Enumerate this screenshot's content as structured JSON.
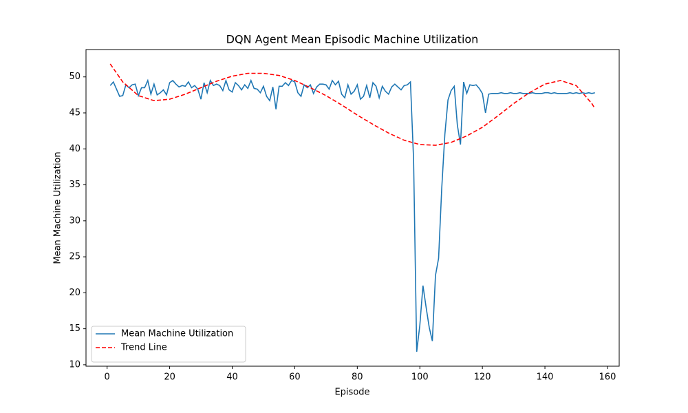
{
  "chart_data": {
    "type": "line",
    "title": "DQN Agent Mean Episodic Machine Utilization",
    "x_label": "Episode",
    "y_label": "Mean Machine Utilization",
    "xlim": [
      -6.75,
      163.75
    ],
    "ylim": [
      9.8,
      53.8
    ],
    "xticks": [
      0,
      20,
      40,
      60,
      80,
      100,
      120,
      140,
      160
    ],
    "yticks": [
      10,
      15,
      20,
      25,
      30,
      35,
      40,
      45,
      50
    ],
    "grid": false,
    "legend": "lower left",
    "series": [
      {
        "name": "Mean Machine Utilization",
        "color": "#1f77b4",
        "style": "solid",
        "x": [
          1,
          2,
          3,
          4,
          5,
          6,
          7,
          8,
          9,
          10,
          11,
          12,
          13,
          14,
          15,
          16,
          17,
          18,
          19,
          20,
          21,
          22,
          23,
          24,
          25,
          26,
          27,
          28,
          29,
          30,
          31,
          32,
          33,
          34,
          35,
          36,
          37,
          38,
          39,
          40,
          41,
          42,
          43,
          44,
          45,
          46,
          47,
          48,
          49,
          50,
          51,
          52,
          53,
          54,
          55,
          56,
          57,
          58,
          59,
          60,
          61,
          62,
          63,
          64,
          65,
          66,
          67,
          68,
          69,
          70,
          71,
          72,
          73,
          74,
          75,
          76,
          77,
          78,
          79,
          80,
          81,
          82,
          83,
          84,
          85,
          86,
          87,
          88,
          89,
          90,
          91,
          92,
          93,
          94,
          95,
          96,
          97,
          98,
          99,
          100,
          101,
          102,
          103,
          104,
          105,
          106,
          107,
          108,
          109,
          110,
          111,
          112,
          113,
          114,
          115,
          116,
          117,
          118,
          119,
          120,
          121,
          122,
          123,
          124,
          125,
          126,
          127,
          128,
          129,
          130,
          131,
          132,
          133,
          134,
          135,
          136,
          137,
          138,
          139,
          140,
          141,
          142,
          143,
          144,
          145,
          146,
          147,
          148,
          149,
          150,
          151,
          152,
          153,
          154,
          155,
          156
        ],
        "values": [
          48.8,
          49.3,
          48.3,
          47.3,
          47.4,
          48.9,
          48.5,
          48.9,
          49.0,
          47.4,
          48.5,
          48.5,
          49.5,
          47.6,
          49.0,
          47.5,
          47.8,
          48.2,
          47.5,
          49.2,
          49.5,
          49.0,
          48.6,
          48.8,
          48.7,
          49.3,
          48.5,
          48.8,
          48.3,
          46.9,
          49.2,
          47.8,
          49.5,
          48.8,
          49.0,
          48.8,
          48.1,
          49.5,
          48.2,
          47.9,
          49.2,
          48.8,
          48.2,
          48.9,
          48.4,
          49.5,
          48.4,
          48.3,
          47.8,
          48.7,
          47.3,
          46.7,
          48.6,
          45.5,
          48.7,
          48.7,
          49.2,
          48.8,
          49.5,
          49.3,
          47.8,
          47.3,
          48.9,
          48.5,
          48.9,
          47.7,
          48.6,
          49.0,
          49.0,
          48.9,
          48.3,
          49.5,
          48.9,
          49.4,
          47.6,
          47.1,
          48.9,
          47.6,
          48.0,
          48.9,
          46.9,
          47.3,
          48.8,
          47.1,
          49.2,
          48.7,
          47.1,
          48.7,
          48.0,
          47.6,
          48.6,
          49.0,
          48.6,
          48.2,
          48.8,
          48.9,
          49.3,
          38.5,
          11.8,
          15.5,
          21.0,
          18.0,
          15.2,
          13.3,
          22.4,
          24.8,
          34.5,
          42.0,
          46.8,
          48.1,
          48.7,
          43.3,
          40.6,
          49.3,
          47.7,
          48.9,
          48.8,
          48.9,
          48.4,
          47.7,
          45.0,
          47.6,
          47.7,
          47.7,
          47.7,
          47.8,
          47.7,
          47.7,
          47.8,
          47.7,
          47.7,
          47.8,
          47.7,
          47.7,
          47.7,
          47.8,
          47.7,
          47.7,
          47.7,
          47.8,
          47.8,
          47.7,
          47.8,
          47.7,
          47.7,
          47.7,
          47.7,
          47.8,
          47.7,
          47.8,
          47.7,
          47.8,
          47.7,
          47.8,
          47.7,
          47.8
        ]
      },
      {
        "name": "Trend Line",
        "color": "#ff0000",
        "style": "dashed",
        "x": [
          1,
          5,
          10,
          15,
          20,
          25,
          30,
          35,
          40,
          45,
          50,
          55,
          60,
          65,
          70,
          75,
          80,
          85,
          90,
          95,
          100,
          105,
          110,
          115,
          120,
          125,
          130,
          135,
          140,
          145,
          150,
          155,
          156
        ],
        "values": [
          51.8,
          49.3,
          47.4,
          46.7,
          46.9,
          47.6,
          48.5,
          49.4,
          50.1,
          50.5,
          50.5,
          50.2,
          49.5,
          48.5,
          47.4,
          46.1,
          44.7,
          43.4,
          42.2,
          41.2,
          40.6,
          40.5,
          40.9,
          41.8,
          43.0,
          44.6,
          46.3,
          47.8,
          49.0,
          49.5,
          48.8,
          46.3,
          45.6
        ]
      }
    ]
  }
}
